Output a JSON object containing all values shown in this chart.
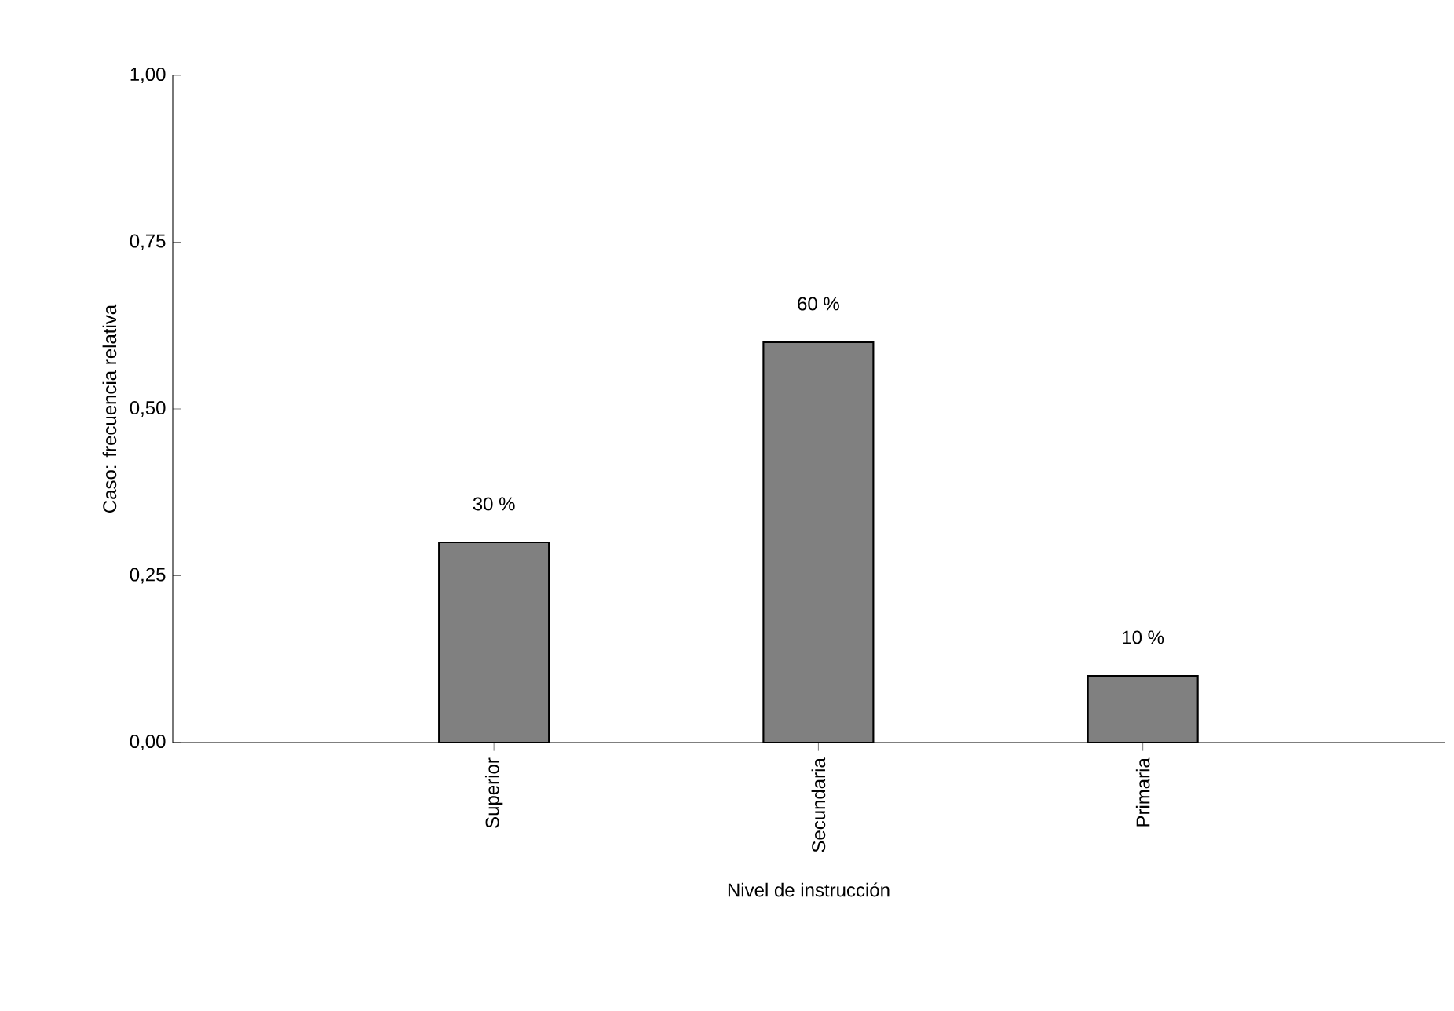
{
  "chart_data": {
    "type": "bar",
    "xlabel": "Nivel de instrucción",
    "ylabel": "Caso: frecuencia relativa",
    "categories": [
      "Superior",
      "Secundaria",
      "Primaria"
    ],
    "values": [
      0.3,
      0.6,
      0.1
    ],
    "value_labels": [
      "30 %",
      "60 %",
      "10 %"
    ],
    "color": "#808080",
    "ylim": [
      0,
      1
    ],
    "yticks": [
      {
        "value": 0,
        "label": "0,00"
      },
      {
        "value": 0.25,
        "label": "0,25"
      },
      {
        "value": 0.5,
        "label": "0,50"
      },
      {
        "value": 0.75,
        "label": "0,75"
      },
      {
        "value": 1,
        "label": "1,00"
      }
    ],
    "grid": false
  }
}
